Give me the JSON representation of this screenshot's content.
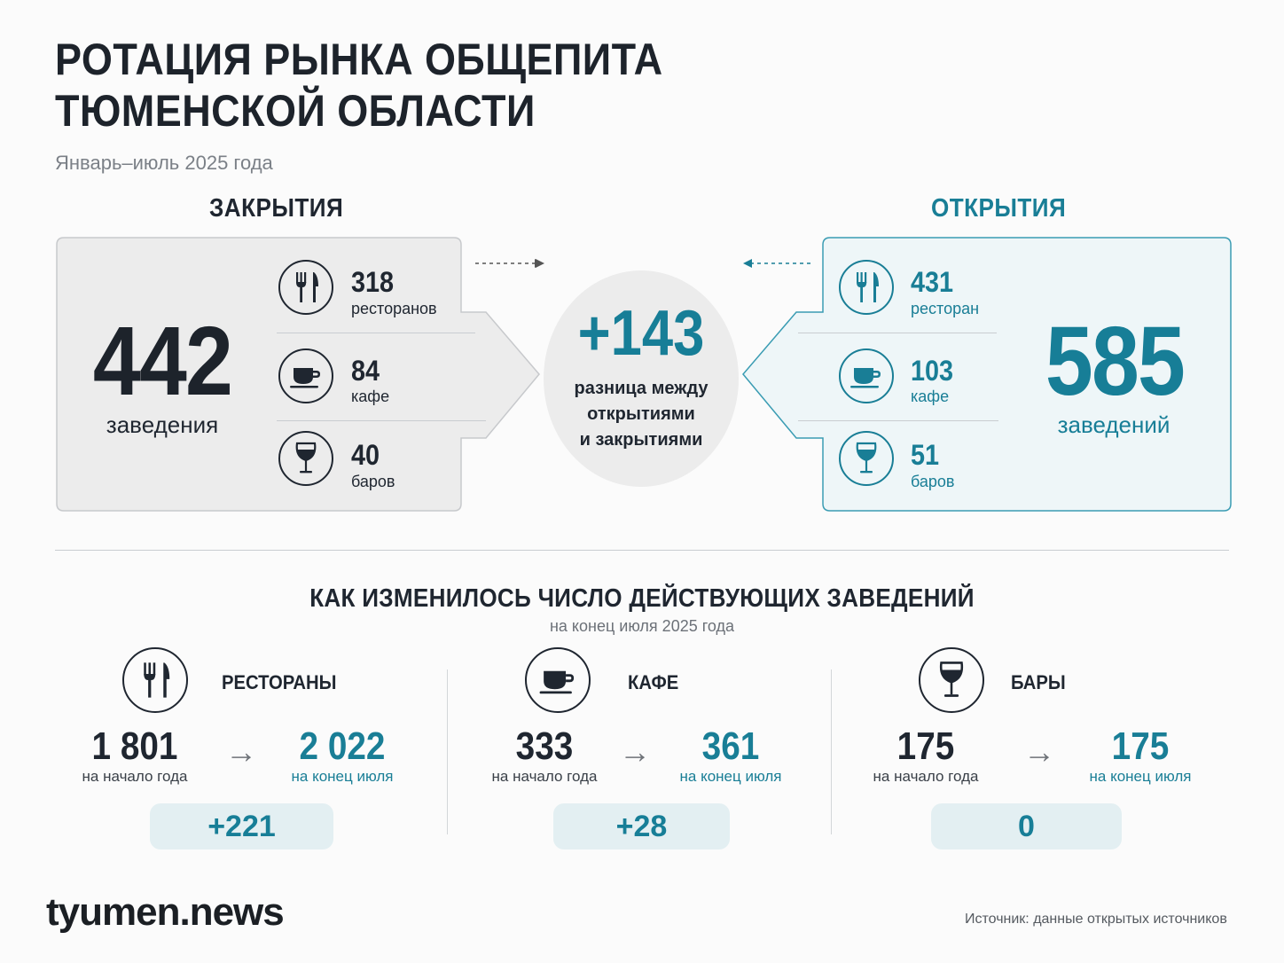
{
  "header": {
    "title_line1": "РОТАЦИЯ РЫНКА ОБЩЕПИТА",
    "title_line2": "ТЮМЕНСКОЙ ОБЛАСТИ",
    "subtitle": "Январь–июль 2025 года"
  },
  "closures": {
    "label": "ЗАКРЫТИЯ",
    "total": "442",
    "total_caption": "заведения",
    "items": [
      {
        "icon": "fork-knife-icon",
        "value": "318",
        "caption": "ресторанов"
      },
      {
        "icon": "coffee-cup-icon",
        "value": "84",
        "caption": "кафе"
      },
      {
        "icon": "wine-glass-icon",
        "value": "40",
        "caption": "баров"
      }
    ]
  },
  "openings": {
    "label": "ОТКРЫТИЯ",
    "total": "585",
    "total_caption": "заведений",
    "items": [
      {
        "icon": "fork-knife-icon",
        "value": "431",
        "caption": "ресторан"
      },
      {
        "icon": "coffee-cup-icon",
        "value": "103",
        "caption": "кафе"
      },
      {
        "icon": "wine-glass-icon",
        "value": "51",
        "caption": "баров"
      }
    ]
  },
  "difference": {
    "value": "+143",
    "caption_line1": "разница между",
    "caption_line2": "открытиями",
    "caption_line3": "и закрытиями"
  },
  "change_section": {
    "title": "КАК ИЗМЕНИЛОСЬ ЧИСЛО ДЕЙСТВУЮЩИХ ЗАВЕДЕНИЙ",
    "subtitle": "на конец июля 2025 года",
    "categories": [
      {
        "name": "РЕСТОРАНЫ",
        "icon": "fork-knife-icon",
        "start": "1 801",
        "start_caption": "на начало года",
        "end": "2 022",
        "end_caption": "на конец июля",
        "delta": "+221"
      },
      {
        "name": "КАФЕ",
        "icon": "coffee-cup-icon",
        "start": "333",
        "start_caption": "на начало года",
        "end": "361",
        "end_caption": "на конец июля",
        "delta": "+28"
      },
      {
        "name": "БАРЫ",
        "icon": "wine-glass-icon",
        "start": "175",
        "start_caption": "на начало года",
        "end": "175",
        "end_caption": "на конец июля",
        "delta": "0"
      }
    ],
    "arrow_glyph": "→"
  },
  "footer": {
    "logo": "tyumen.news",
    "source": "Источник: данные открытых источников"
  },
  "colors": {
    "accent": "#177e97",
    "dark": "#1f2630",
    "closures_panel": "#ececec",
    "openings_panel": "#eef6f8",
    "delta_badge": "#e3eff2"
  }
}
